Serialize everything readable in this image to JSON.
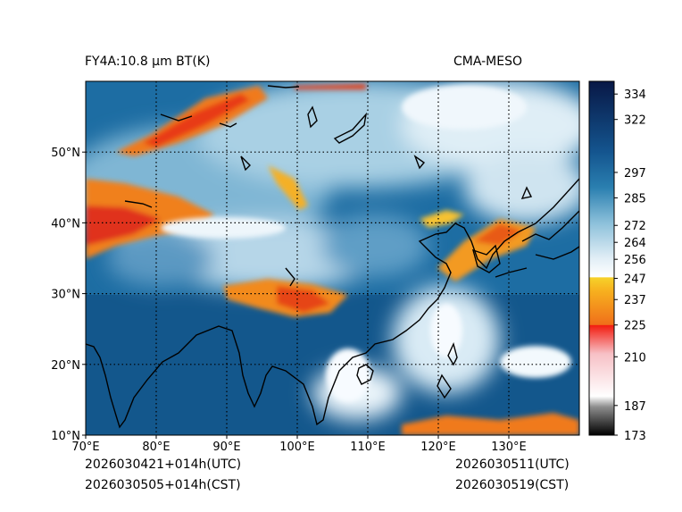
{
  "header": {
    "left_title": "FY4A:10.8 µm BT(K)",
    "right_title": "CMA-MESO"
  },
  "footer": {
    "utc_left": "2026030421+014h(UTC)",
    "cst_left": "2026030505+014h(CST)",
    "utc_right": "2026030511(UTC)",
    "cst_right": "2026030519(CST)"
  },
  "map": {
    "lon_range": [
      70,
      140
    ],
    "lat_range": [
      10,
      60
    ],
    "lon_ticks": [
      {
        "value": 70,
        "label": "70°E"
      },
      {
        "value": 80,
        "label": "80°E"
      },
      {
        "value": 90,
        "label": "90°E"
      },
      {
        "value": 100,
        "label": "100°E"
      },
      {
        "value": 110,
        "label": "110°E"
      },
      {
        "value": 120,
        "label": "120°E"
      },
      {
        "value": 130,
        "label": "130°E"
      }
    ],
    "lat_ticks": [
      {
        "value": 10,
        "label": "10°N"
      },
      {
        "value": 20,
        "label": "20°N"
      },
      {
        "value": 30,
        "label": "30°N"
      },
      {
        "value": 40,
        "label": "40°N"
      },
      {
        "value": 50,
        "label": "50°N"
      }
    ],
    "gridline_lons": [
      80,
      90,
      100,
      110,
      120,
      130
    ],
    "gridline_lats": [
      20,
      30,
      40,
      50
    ],
    "cold_cloud_regions": [
      {
        "name": "northwest-band",
        "lon": 82,
        "lat": 54
      },
      {
        "name": "west-cluster",
        "lon": 76,
        "lat": 41
      },
      {
        "name": "tibet-cluster",
        "lon": 100,
        "lat": 30
      },
      {
        "name": "korea-band",
        "lon": 126,
        "lat": 37
      },
      {
        "name": "south-sea",
        "lon": 125,
        "lat": 11
      }
    ]
  },
  "colorbar": {
    "min": 173,
    "max": 340,
    "ticks": [
      334,
      322,
      297,
      285,
      272,
      264,
      256,
      247,
      237,
      225,
      210,
      187,
      173
    ],
    "colors": {
      "warmest": "#0b1f55",
      "ocean": "#1e6fa3",
      "mid": "#7fb6d4",
      "white": "#f7fbff",
      "yellow": "#f2c623",
      "orange": "#f08a1e",
      "red": "#f21d10",
      "pink": "#f7c0c6",
      "gray": "#9a9a9a",
      "black": "#000000"
    }
  }
}
